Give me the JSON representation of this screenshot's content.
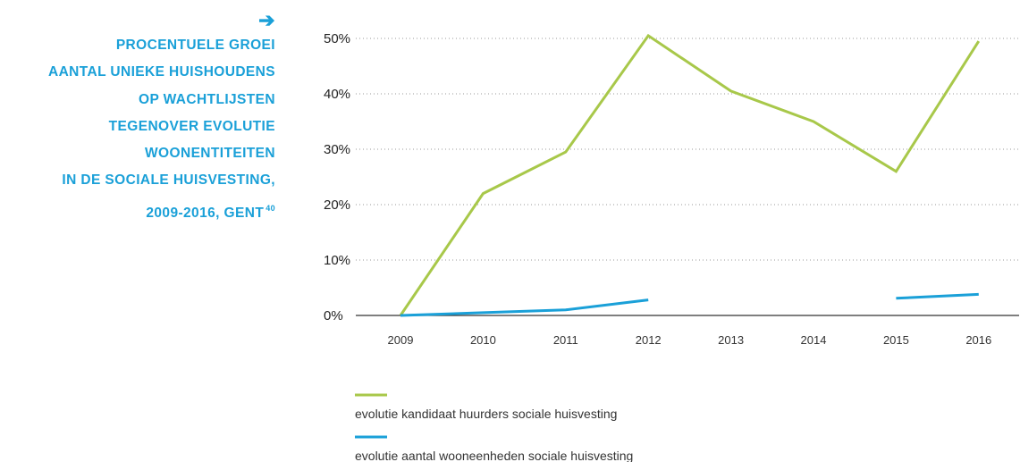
{
  "title": {
    "arrow": "➔",
    "lines": [
      "PROCENTUELE GROEI",
      "AANTAL UNIEKE HUISHOUDENS",
      "OP WACHTLIJSTEN",
      "TEGENOVER EVOLUTIE",
      "WOONENTITEITEN",
      "IN DE SOCIALE HUISVESTING,",
      "2009-2016, GENT"
    ],
    "footnote": "40",
    "color": "#1aa0d8"
  },
  "chart_data": {
    "type": "line",
    "x": [
      "2009",
      "2010",
      "2011",
      "2012",
      "2013",
      "2014",
      "2015",
      "2016"
    ],
    "y_ticks": [
      "0%",
      "10%",
      "20%",
      "30%",
      "40%",
      "50%"
    ],
    "ylim": [
      0,
      50
    ],
    "grid": "horizontal-dotted",
    "legend_position": "bottom",
    "series": [
      {
        "name": "evolutie kandidaat huurders sociale huisvesting",
        "color": "#a8c84a",
        "values": [
          0,
          22,
          29.5,
          50.5,
          40.5,
          35,
          26,
          49.5
        ]
      },
      {
        "name": "evolutie aantal wooneenheden sociale huisvesting",
        "color": "#1aa0d8",
        "values": [
          0,
          0.5,
          1,
          2.8,
          null,
          null,
          3.1,
          3.8
        ]
      }
    ]
  }
}
